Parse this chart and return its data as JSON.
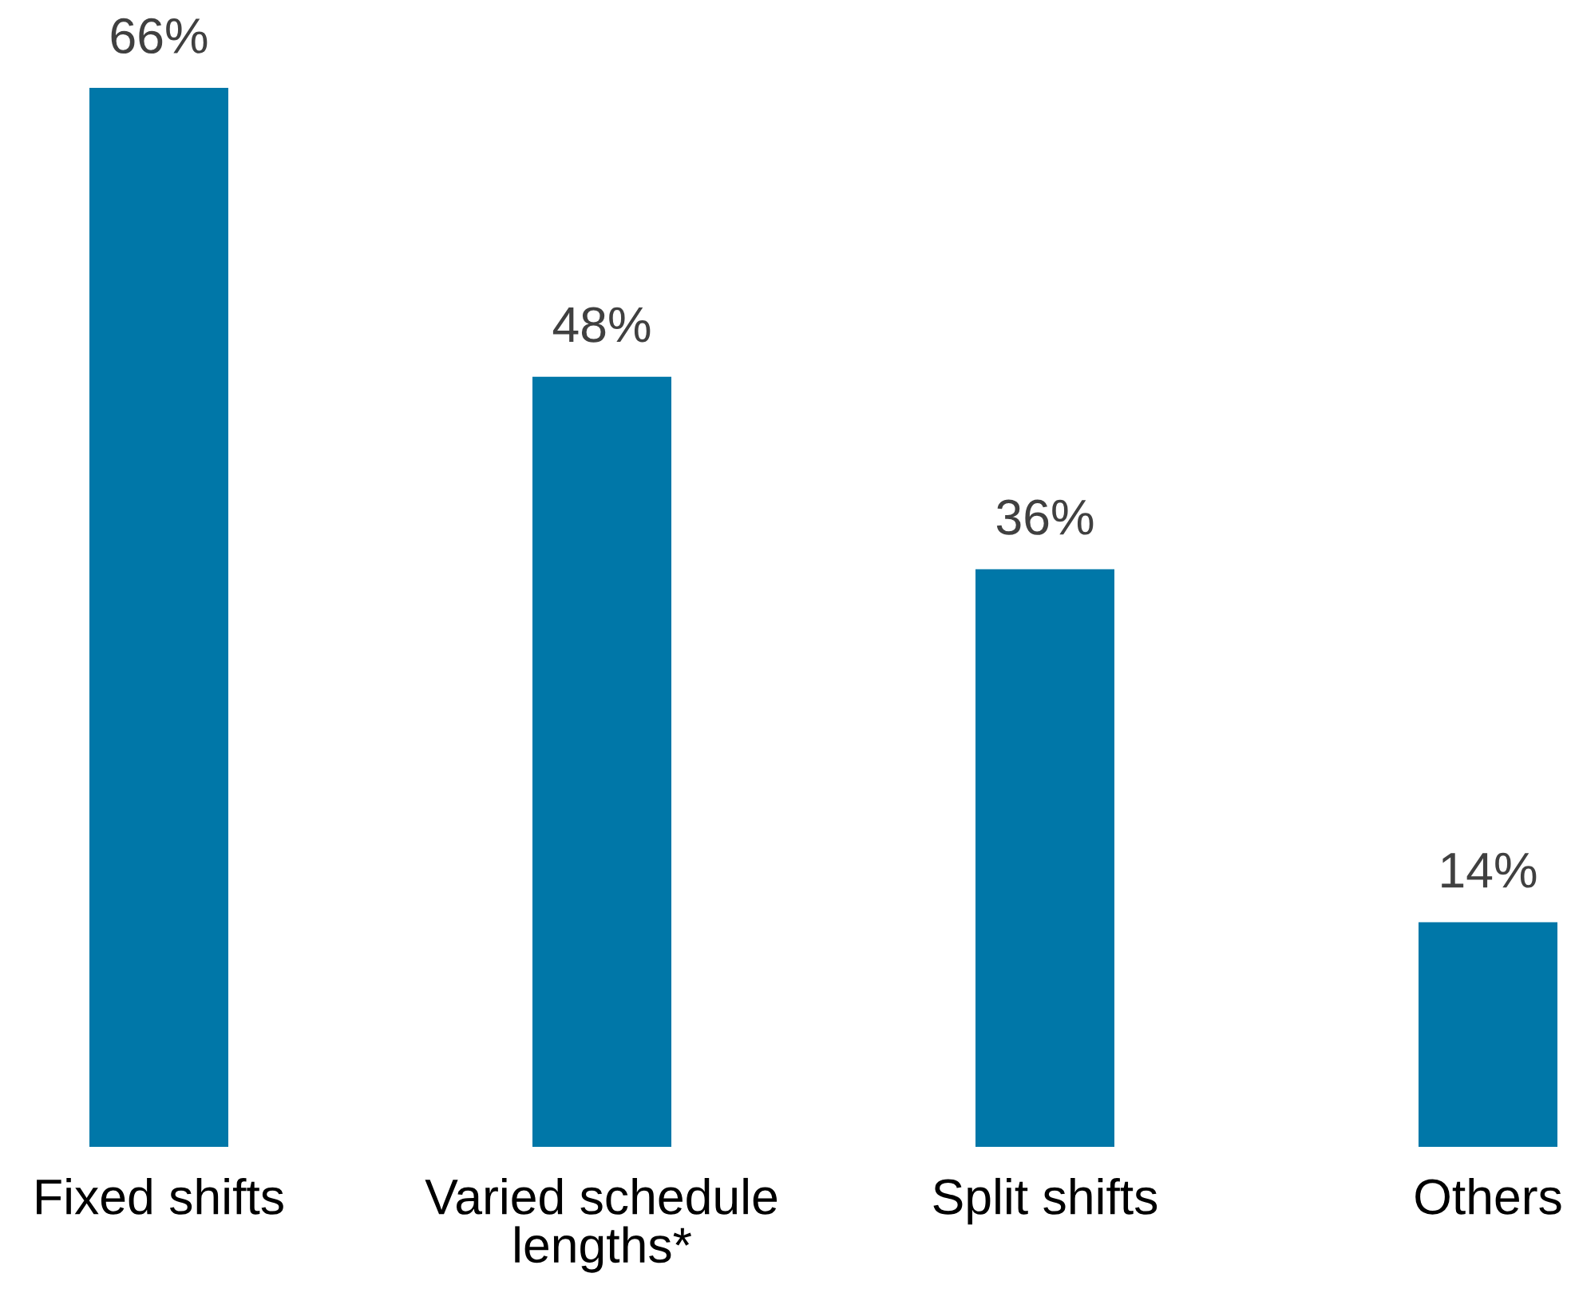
{
  "chart_data": {
    "type": "bar",
    "categories": [
      "Fixed shifts",
      "Varied schedule lengths*",
      "Split shifts",
      "Others"
    ],
    "values": [
      66,
      48,
      36,
      14
    ],
    "value_labels": [
      "66%",
      "48%",
      "36%",
      "14%"
    ],
    "color": "#0077a8"
  }
}
